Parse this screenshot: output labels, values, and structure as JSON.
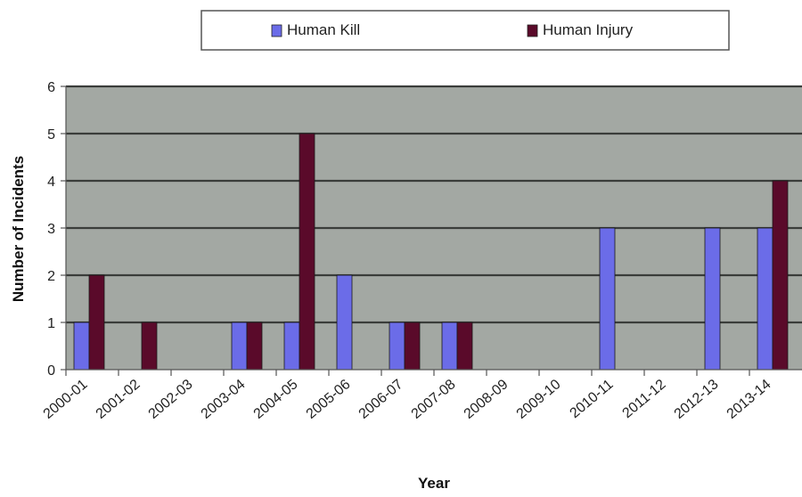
{
  "chart_data": {
    "type": "bar",
    "categories": [
      "2000-01",
      "2001-02",
      "2002-03",
      "2003-04",
      "2004-05",
      "2005-06",
      "2006-07",
      "2007-08",
      "2008-09",
      "2009-10",
      "2010-11",
      "2011-12",
      "2012-13",
      "2013-14"
    ],
    "series": [
      {
        "name": "Human Kill",
        "color": "#6b6ce8",
        "values": [
          1,
          0,
          0,
          1,
          1,
          2,
          1,
          1,
          0,
          0,
          3,
          0,
          3,
          3
        ]
      },
      {
        "name": "Human Injury",
        "color": "#5a0a2a",
        "values": [
          2,
          1,
          0,
          1,
          5,
          0,
          1,
          1,
          0,
          0,
          0,
          0,
          0,
          4
        ]
      }
    ],
    "title": "",
    "xlabel": "Year",
    "ylabel": "Number of Incidents",
    "ylim": [
      0,
      6
    ],
    "yticks": [
      "0",
      "1",
      "2",
      "3",
      "4",
      "5",
      "6"
    ],
    "grid": true,
    "legend_position": "top",
    "plot_background": "#a3a8a3"
  }
}
